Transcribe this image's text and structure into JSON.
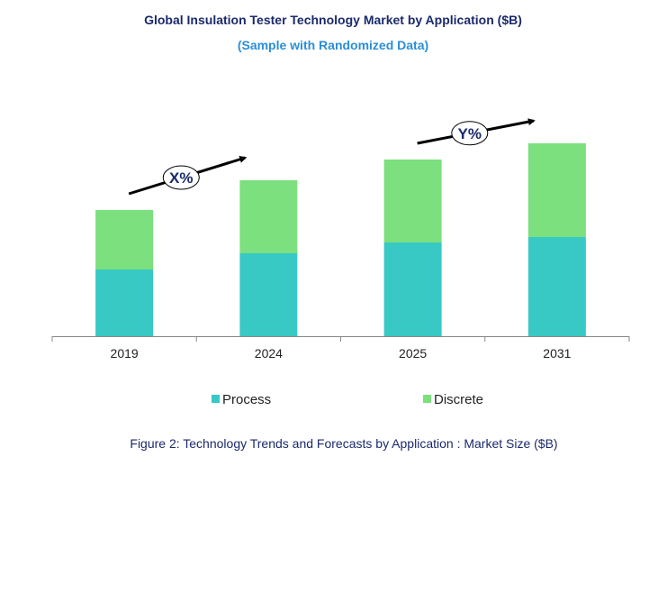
{
  "chart_data": {
    "type": "bar",
    "stacked": true,
    "title": "Global Insulation  Tester Technology Market by Application ($B)",
    "subtitle": "(Sample with Randomized Data)",
    "caption": "Figure 2: Technology  Trends  and Forecasts by Application : Market Size ($B)",
    "categories": [
      "2019",
      "2024",
      "2025",
      "2031"
    ],
    "series": [
      {
        "name": "Process",
        "color": "#38C9C5",
        "values": [
          3.7,
          4.6,
          5.2,
          5.5
        ]
      },
      {
        "name": "Discrete",
        "color": "#7BE07D",
        "values": [
          3.3,
          4.05,
          4.6,
          5.2
        ]
      }
    ],
    "ylim": [
      0,
      12
    ],
    "y_axis_visible": false,
    "grid": false,
    "legend_position": "bottom",
    "annotations": [
      {
        "label": "X%",
        "from": "2019",
        "to": "2024"
      },
      {
        "label": "Y%",
        "from": "2025",
        "to": "2031"
      }
    ],
    "colors": {
      "title": "#1B2A6B",
      "subtitle": "#2A8ED8",
      "axis": "#888888"
    }
  }
}
